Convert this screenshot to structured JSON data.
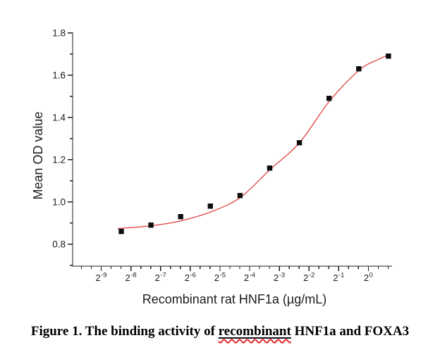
{
  "figure": {
    "caption_prefix": "Figure 1. The binding activity of ",
    "caption_misspelled_word": "recombinant",
    "caption_suffix": " HNF1a and FOXA3"
  },
  "chart_data": {
    "type": "scatter",
    "title": "",
    "xlabel": "Recombinant rat HNF1a (µg/mL)",
    "ylabel": "Mean OD value",
    "x_scale": "log2",
    "grid": false,
    "legend": "none",
    "x_axis": {
      "tick_base": "2",
      "tick_exponents": [
        -9,
        -8,
        -7,
        -6,
        -5,
        -4,
        -3,
        -2,
        -1,
        0
      ],
      "minor_ticks_between_majors": 2,
      "range_log2": [
        -9.96,
        0.8
      ]
    },
    "y_axis": {
      "tick_labels": [
        "0.8",
        "1.0",
        "1.2",
        "1.4",
        "1.6",
        "1.8"
      ],
      "minor_tick_values": [
        0.7,
        0.9,
        1.1,
        1.3,
        1.5,
        1.7
      ],
      "range": [
        0.7,
        1.8
      ]
    },
    "series": [
      {
        "name": "Mean OD value",
        "marker": "filled-square",
        "marker_color": "#0d0d0d",
        "x_ug_per_mL": [
          0.003125,
          0.00625,
          0.0125,
          0.025,
          0.05,
          0.1,
          0.2,
          0.4,
          0.8,
          1.6
        ],
        "y_od": [
          0.86,
          0.89,
          0.93,
          0.98,
          1.03,
          1.16,
          1.28,
          1.49,
          1.63,
          1.69
        ]
      }
    ],
    "fit_curve": {
      "name": "sigmoidal-fit-line",
      "color": "#e03232",
      "x_log2": [
        -8.45,
        -8.32,
        -7.32,
        -6.32,
        -5.32,
        -4.32,
        -3.32,
        -2.32,
        -1.32,
        -0.32,
        0.3,
        0.72
      ],
      "y_od": [
        0.873,
        0.875,
        0.887,
        0.91,
        0.952,
        1.02,
        1.152,
        1.28,
        1.475,
        1.622,
        1.672,
        1.698
      ]
    }
  }
}
